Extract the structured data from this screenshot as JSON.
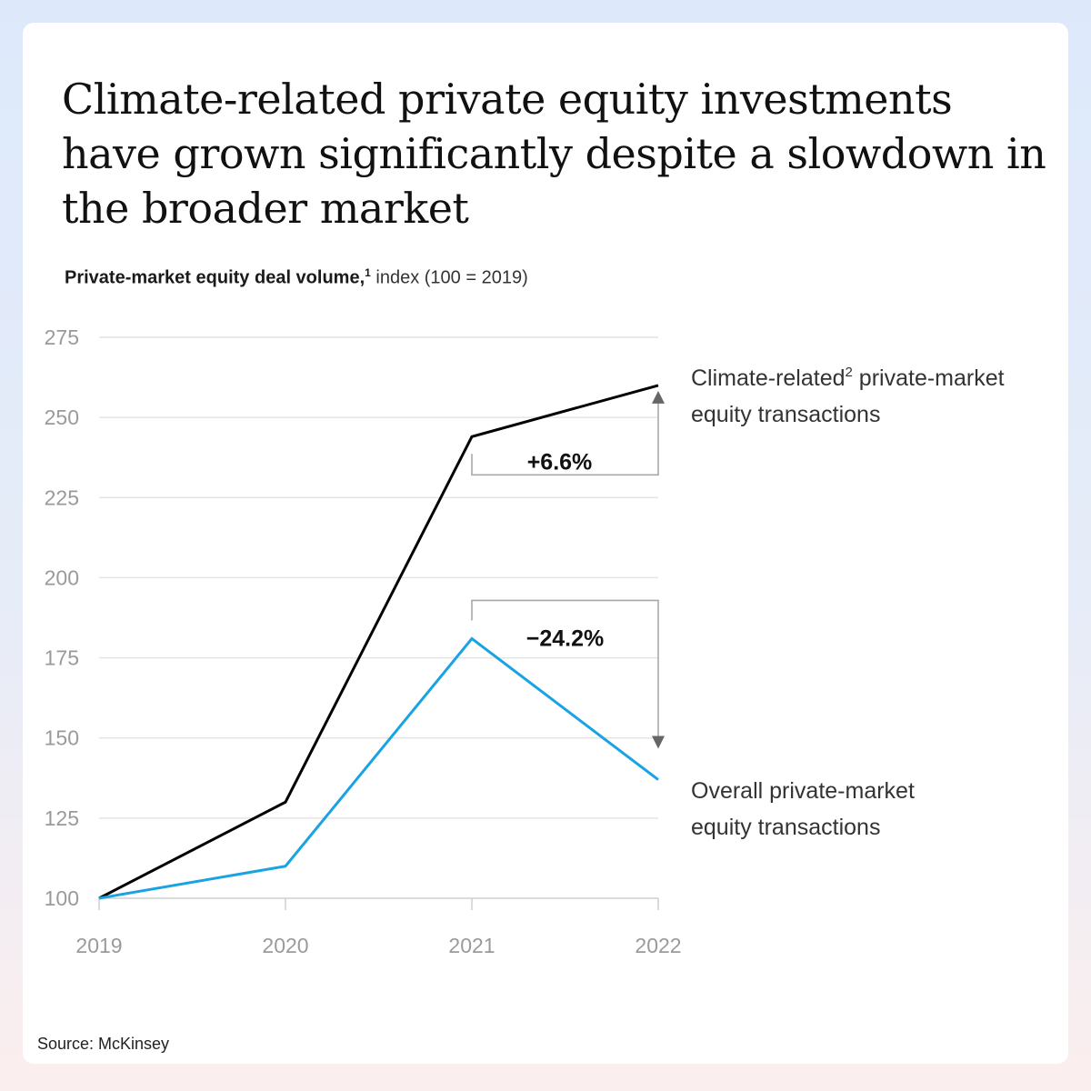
{
  "title": "Climate-related private equity investments have grown significantly despite a slowdown in the broader market",
  "subtitle": {
    "bold": "Private-market equity deal volume,",
    "footnote_marker": "1",
    "normal": " index (100 = 2019)"
  },
  "source": "Source: McKinsey",
  "chart_data": {
    "type": "line",
    "categories": [
      "2019",
      "2020",
      "2021",
      "2022"
    ],
    "ylim": [
      100,
      275
    ],
    "yticks": [
      100,
      125,
      150,
      175,
      200,
      225,
      250,
      275
    ],
    "grid": true,
    "series": [
      {
        "name": "Climate-related private-market equity transactions",
        "label_lines": [
          "Climate-related",
          "2",
          " private-market",
          "equity transactions"
        ],
        "values": [
          100,
          130,
          244,
          260
        ],
        "color": "#000000"
      },
      {
        "name": "Overall private-market equity transactions",
        "label_lines": [
          "Overall private-market",
          "equity transactions"
        ],
        "values": [
          100,
          110,
          181,
          137
        ],
        "color": "#1aa3e3"
      }
    ],
    "annotations": [
      {
        "text": "+6.6%",
        "from": "2021",
        "to": "2022",
        "series": 0
      },
      {
        "text": "−24.2%",
        "from": "2021",
        "to": "2022",
        "series": 1
      }
    ]
  }
}
